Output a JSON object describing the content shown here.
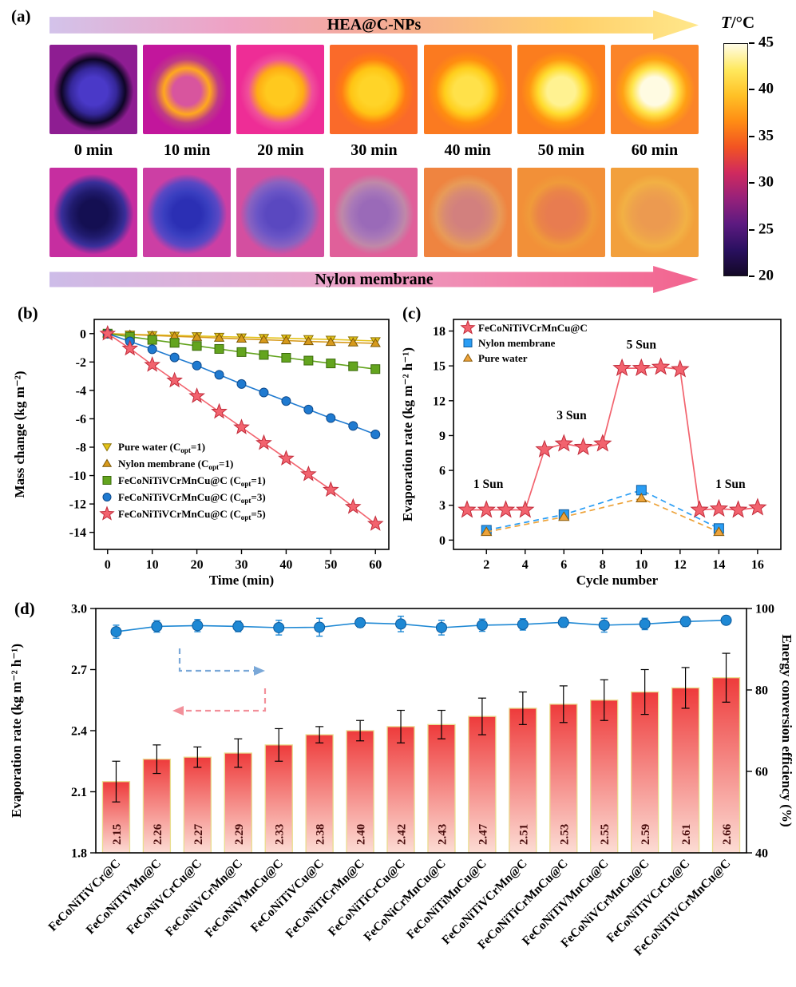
{
  "panel_a": {
    "label": "(a)",
    "top_arrow_label": "HEA@C-NPs",
    "bottom_arrow_label": "Nylon membrane",
    "time_labels": [
      "0 min",
      "10 min",
      "20 min",
      "30 min",
      "40 min",
      "50 min",
      "60 min"
    ],
    "colorbar": {
      "title_italic": "T",
      "title_rest": "/°C",
      "tick_labels": [
        "45",
        "40",
        "35",
        "30",
        "25",
        "20"
      ],
      "gradient_top_to_bottom": [
        "#fffce8",
        "#ffe95e",
        "#ffc126",
        "#ff8d14",
        "#f25422",
        "#d02a5e",
        "#97217a",
        "#5c1a80",
        "#2a1060",
        "#130826"
      ]
    },
    "thermal_rows": [
      {
        "cells": [
          {
            "center": "#4a39c8",
            "inner": "#35279a",
            "rim": "#0e0526",
            "bg": "#8e1d92"
          },
          {
            "center": "#d8559e",
            "inner": "#ffa81e",
            "rim": "#c03a86",
            "bg": "#c2169c"
          },
          {
            "center": "#ffc91e",
            "inner": "#ffac14",
            "rim": "#f04f9a",
            "bg": "#ee2d96"
          },
          {
            "center": "#ffd428",
            "inner": "#ffc414",
            "rim": "#ff7b14",
            "bg": "#fa6a2a"
          },
          {
            "center": "#ffe14a",
            "inner": "#ffce1c",
            "rim": "#ff8d10",
            "bg": "#fb7a20"
          },
          {
            "center": "#fff291",
            "inner": "#ffdc2e",
            "rim": "#ff9612",
            "bg": "#fb7d1e"
          },
          {
            "center": "#fffbe2",
            "inner": "#ffe44a",
            "rim": "#ffa014",
            "bg": "#fb8428"
          }
        ]
      },
      {
        "cells": [
          {
            "center": "#140f52",
            "inner": "#201b6e",
            "rim": "#3a2f9a",
            "bg": "#c62ea0"
          },
          {
            "center": "#2b2fb4",
            "inner": "#3a3fc0",
            "rim": "#5a48c4",
            "bg": "#cc3fa4"
          },
          {
            "center": "#5a48c0",
            "inner": "#6a55c6",
            "rim": "#8a62c0",
            "bg": "#d44fa0"
          },
          {
            "center": "#9a6ab8",
            "inner": "#a878b8",
            "rim": "#c088a8",
            "bg": "#e0609a"
          },
          {
            "center": "#d2807e",
            "inner": "#d88a74",
            "rim": "#e89a58",
            "bg": "#ef8440"
          },
          {
            "center": "#e87c50",
            "inner": "#ea8448",
            "rim": "#f09a3a",
            "bg": "#f29038"
          },
          {
            "center": "#ec9a50",
            "inner": "#eea24c",
            "rim": "#f2b044",
            "bg": "#f2a03c"
          }
        ]
      }
    ]
  },
  "chart_data": [
    {
      "id": "panel_b",
      "panel_label": "(b)",
      "type": "line",
      "xlabel": "Time (min)",
      "ylabel": "Mass change (kg m⁻²)",
      "xlim": [
        -3,
        63
      ],
      "ylim": [
        -15.2,
        1.0
      ],
      "xticks": [
        0,
        10,
        20,
        30,
        40,
        50,
        60
      ],
      "yticks": [
        0,
        -2,
        -4,
        -6,
        -8,
        -10,
        -12,
        -14
      ],
      "x": [
        0,
        5,
        10,
        15,
        20,
        25,
        30,
        35,
        40,
        45,
        50,
        55,
        60
      ],
      "series": [
        {
          "name": "Pure water (C_opt=1)",
          "marker": "triangle-down",
          "color": "#e3c219",
          "edge": "#8a7208",
          "values": [
            0,
            -0.05,
            -0.09,
            -0.13,
            -0.17,
            -0.21,
            -0.25,
            -0.29,
            -0.33,
            -0.37,
            -0.41,
            -0.46,
            -0.52
          ]
        },
        {
          "name": "Nylon membrane (C_opt=1)",
          "marker": "triangle-up",
          "color": "#d79a1c",
          "edge": "#7c5806",
          "values": [
            0,
            -0.07,
            -0.13,
            -0.19,
            -0.25,
            -0.31,
            -0.37,
            -0.43,
            -0.49,
            -0.55,
            -0.6,
            -0.64,
            -0.68
          ]
        },
        {
          "name": "FeCoNiTiVCrMnCu@C (C_opt=1)",
          "marker": "square",
          "color": "#63a41e",
          "edge": "#3a6a0a",
          "values": [
            0,
            -0.22,
            -0.44,
            -0.65,
            -0.87,
            -1.08,
            -1.3,
            -1.5,
            -1.7,
            -1.9,
            -2.1,
            -2.3,
            -2.5
          ]
        },
        {
          "name": "FeCoNiTiVCrMnCu@C (C_opt=3)",
          "marker": "circle",
          "color": "#1f7ad0",
          "edge": "#0d4a8c",
          "values": [
            0,
            -0.55,
            -1.1,
            -1.68,
            -2.25,
            -2.9,
            -3.55,
            -4.15,
            -4.75,
            -5.35,
            -5.95,
            -6.5,
            -7.1
          ]
        },
        {
          "name": "FeCoNiTiVCrMnCu@C (C_opt=5)",
          "marker": "star",
          "color": "#f2636e",
          "edge": "#c22b3a",
          "values": [
            0,
            -1.05,
            -2.2,
            -3.3,
            -4.4,
            -5.5,
            -6.6,
            -7.7,
            -8.8,
            -9.9,
            -11.0,
            -12.2,
            -13.4
          ]
        }
      ]
    },
    {
      "id": "panel_c",
      "panel_label": "(c)",
      "type": "line",
      "xlabel": "Cycle number",
      "ylabel": "Evaporation rate (kg m⁻² h⁻¹)",
      "xlim": [
        0.3,
        17.2
      ],
      "ylim": [
        -0.8,
        19
      ],
      "xticks": [
        2,
        4,
        6,
        8,
        10,
        12,
        14,
        16
      ],
      "yticks": [
        0,
        3,
        6,
        9,
        12,
        15,
        18
      ],
      "series": [
        {
          "name": "FeCoNiTiVCrMnCu@C",
          "marker": "star",
          "color": "#f2636e",
          "edge": "#c22b3a",
          "linestyle": "solid",
          "x": [
            1,
            2,
            3,
            4,
            5,
            6,
            7,
            8,
            9,
            10,
            11,
            12,
            13,
            14,
            15,
            16
          ],
          "y": [
            2.6,
            2.6,
            2.6,
            2.6,
            7.8,
            8.3,
            8.0,
            8.3,
            14.8,
            14.8,
            14.9,
            14.7,
            2.6,
            2.7,
            2.6,
            2.8
          ]
        },
        {
          "name": "Nylon membrane",
          "marker": "square",
          "color": "#2a9df4",
          "edge": "#0d5a9c",
          "linestyle": "dashed",
          "x": [
            2,
            6,
            10,
            14
          ],
          "y": [
            0.85,
            2.2,
            4.3,
            1.0
          ]
        },
        {
          "name": "Pure water",
          "marker": "triangle-up",
          "color": "#eda33a",
          "edge": "#8a5a08",
          "linestyle": "dashed",
          "x": [
            2,
            6,
            10,
            14
          ],
          "y": [
            0.7,
            2.0,
            3.6,
            0.7
          ]
        }
      ],
      "annotations": [
        {
          "text": "1 Sun",
          "x": 2.1,
          "y": 4.5
        },
        {
          "text": "3 Sun",
          "x": 6.4,
          "y": 10.4
        },
        {
          "text": "5 Sun",
          "x": 10.0,
          "y": 16.5
        },
        {
          "text": "1 Sun",
          "x": 14.6,
          "y": 4.5
        }
      ]
    },
    {
      "id": "panel_d",
      "panel_label": "(d)",
      "type": "bar",
      "ylabel_left": "Evaporation rate (kg m⁻² h⁻¹)",
      "ylabel_right": "Energy conversion efficiency (%)",
      "ylim_left": [
        1.8,
        3.0
      ],
      "yticks_left": [
        1.8,
        2.1,
        2.4,
        2.7,
        3.0
      ],
      "ylim_right": [
        40,
        100
      ],
      "yticks_right": [
        40,
        60,
        80,
        100
      ],
      "categories": [
        "FeCoNiTiVCr@C",
        "FeCoNiTiVMn@C",
        "FeCoNiVCrCu@C",
        "FeCoNiVCrMn@C",
        "FeCoNiVMnCu@C",
        "FeCoNiTiVCu@C",
        "FeCoNiTiCrMn@C",
        "FeCoNiTiCrCu@C",
        "FeCoNiCrMnCu@C",
        "FeCoNiTiMnCu@C",
        "FeCoNiTiVCrMn@C",
        "FeCoNiTiCrMnCu@C",
        "FeCoNiTiVMnCu@C",
        "FeCoNiVCrMnCu@C",
        "FeCoNiTiVCrCu@C",
        "FeCoNiTiVCrMnCu@C"
      ],
      "bar_values": [
        2.15,
        2.26,
        2.27,
        2.29,
        2.33,
        2.38,
        2.4,
        2.42,
        2.43,
        2.47,
        2.51,
        2.53,
        2.55,
        2.59,
        2.61,
        2.66
      ],
      "bar_value_labels": [
        "2.15",
        "2.26",
        "2.27",
        "2.29",
        "2.33",
        "2.38",
        "2.40",
        "2.42",
        "2.43",
        "2.47",
        "2.51",
        "2.53",
        "2.55",
        "2.59",
        "2.61",
        "2.66"
      ],
      "bar_errors": [
        0.1,
        0.07,
        0.05,
        0.07,
        0.08,
        0.04,
        0.05,
        0.08,
        0.07,
        0.09,
        0.08,
        0.09,
        0.1,
        0.11,
        0.1,
        0.12
      ],
      "efficiency_values": [
        94.3,
        95.6,
        95.8,
        95.6,
        95.3,
        95.4,
        96.5,
        96.2,
        95.3,
        95.9,
        96.1,
        96.6,
        95.9,
        96.2,
        96.8,
        97.1
      ],
      "efficiency_errors": [
        1.6,
        1.4,
        1.5,
        1.3,
        1.8,
        2.2,
        1.1,
        1.9,
        1.8,
        1.5,
        1.4,
        1.2,
        1.7,
        1.4,
        1.2,
        1.0
      ],
      "colors": {
        "bar_top": "#ee3b3b",
        "bar_bottom": "#fcdcd4",
        "bar_edge": "#e9dd8e",
        "bar_label": "#4a0d0d",
        "efficiency": "#1e88d4",
        "efficiency_edge": "#0d5a9c",
        "arrow_blue": "#7aa8d8",
        "arrow_pink": "#f2909a"
      }
    }
  ]
}
